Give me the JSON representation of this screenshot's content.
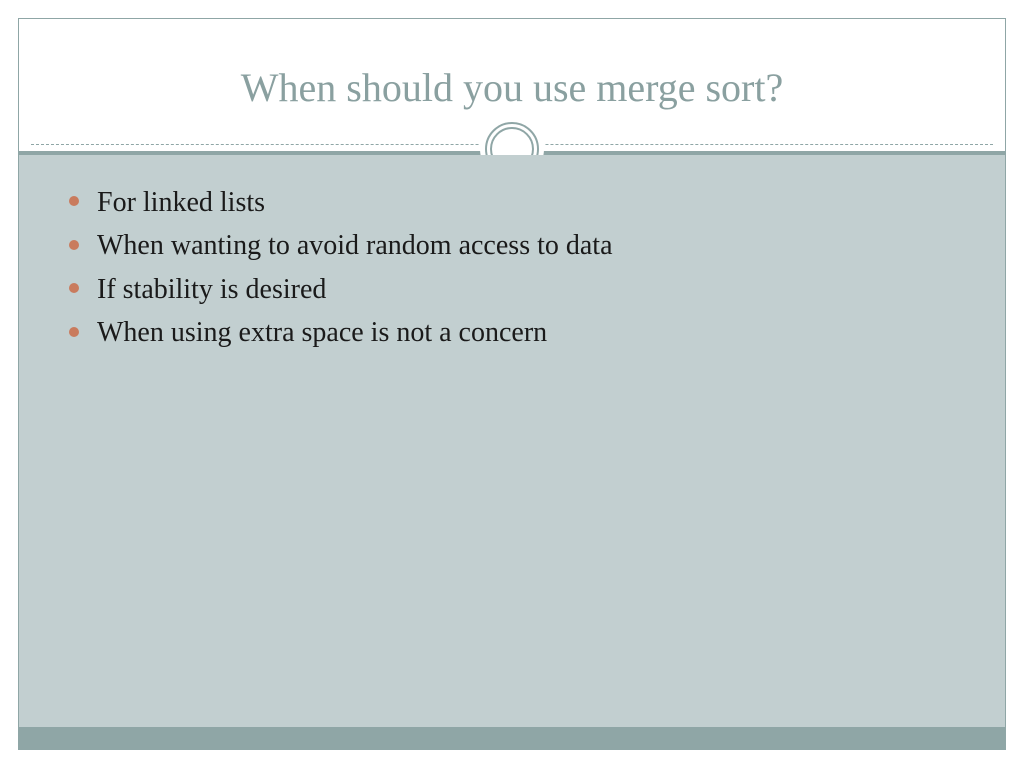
{
  "slide": {
    "title": "When should you use merge sort?",
    "title_color": "#8aa0a0",
    "title_fontsize": 40,
    "bullets": [
      "For linked lists",
      "When wanting to avoid random access to data",
      "If stability is desired",
      "When using extra space is not a concern"
    ],
    "bullet_color": "#c97b5d",
    "body_text_color": "#1a1a1a",
    "body_fontsize": 28,
    "body_bg": "#c2cfd0",
    "accent_color": "#8fa6a6",
    "header_bg": "#ffffff",
    "footer_bar_color": "#8fa6a6",
    "border_color": "#8fa6a6"
  }
}
